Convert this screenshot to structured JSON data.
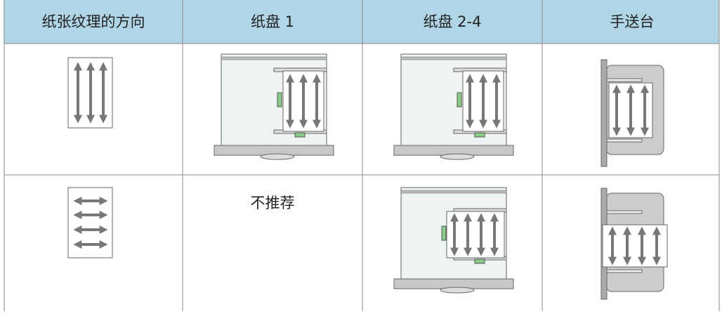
{
  "table": {
    "headers": [
      "纸张纹理的方向",
      "纸盘 1",
      "纸盘 2-4",
      "手送台"
    ],
    "rows": {
      "1": {
        "1": "不推荐"
      }
    }
  }
}
